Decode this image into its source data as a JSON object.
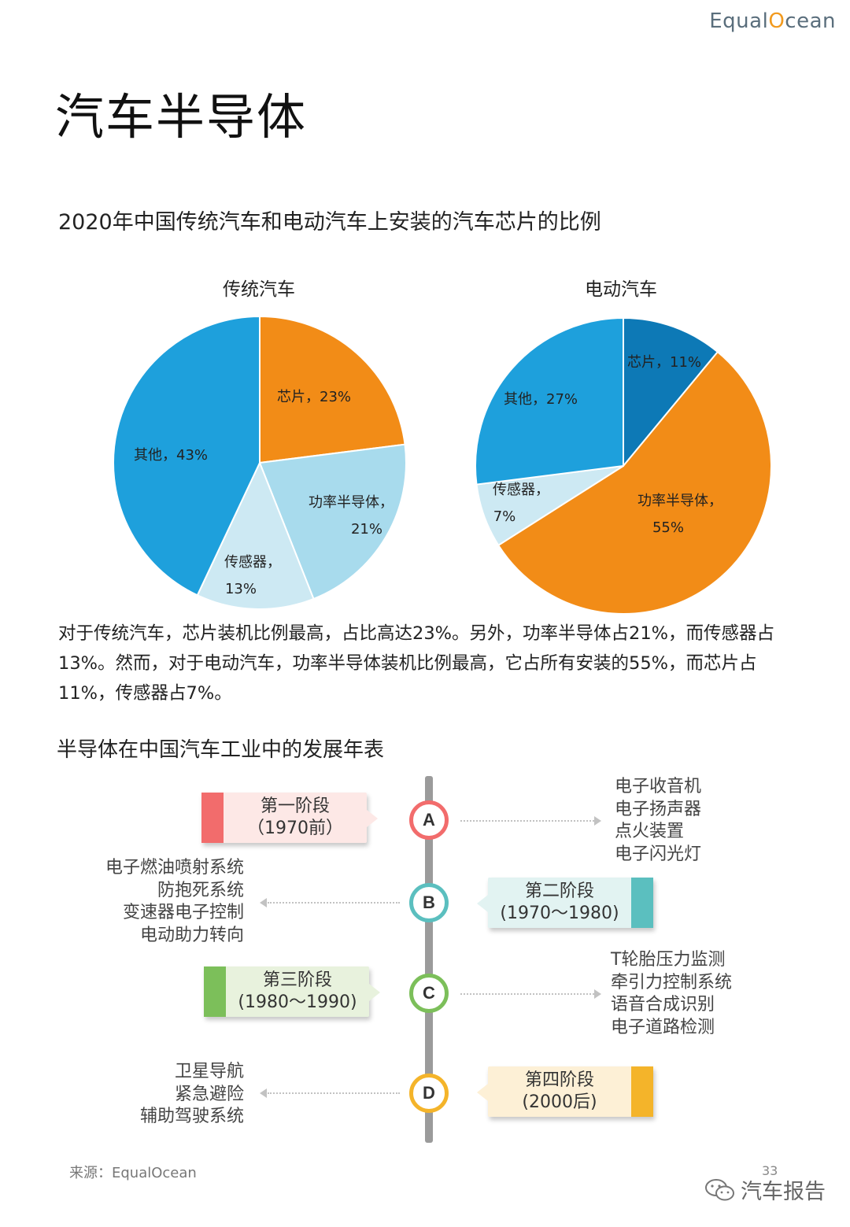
{
  "logo": {
    "prefix": "Equal",
    "o": "O",
    "suffix": "cean"
  },
  "page_title": "汽车半导体",
  "section1_title": "2020年中国传统汽车和电动汽车上安装的汽车芯片的比例",
  "chart_data": [
    {
      "type": "pie",
      "title": "传统汽车",
      "slices": [
        {
          "name": "芯片",
          "value": 23,
          "label": "芯片，23%",
          "color": "#f28c17"
        },
        {
          "name": "功率半导体",
          "value": 21,
          "label_lines": [
            "功率半导体，",
            "21%"
          ],
          "color": "#a8dbed"
        },
        {
          "name": "传感器",
          "value": 13,
          "label_lines": [
            "传感器，",
            "13%"
          ],
          "color": "#cde9f3"
        },
        {
          "name": "其他",
          "value": 43,
          "label": "其他，43%",
          "color": "#1ea0dc"
        }
      ]
    },
    {
      "type": "pie",
      "title": "电动汽车",
      "slices": [
        {
          "name": "芯片",
          "value": 11,
          "label": "芯片，11%",
          "color": "#0d79b6"
        },
        {
          "name": "功率半导体",
          "value": 55,
          "label_lines": [
            "功率半导体，",
            "55%"
          ],
          "color": "#f28c17"
        },
        {
          "name": "传感器",
          "value": 7,
          "label_lines": [
            "传感器，",
            "7%"
          ],
          "color": "#cde9f3"
        },
        {
          "name": "其他",
          "value": 27,
          "label": "其他，27%",
          "color": "#1ea0dc"
        }
      ]
    }
  ],
  "paragraph": "对于传统汽车，芯片装机比例最高，占比高达23%。另外，功率半导体占21%，而传感器占13%。然而，对于电动汽车，功率半导体装机比例最高，它占所有安装的55%，而芯片占11%，传感器占7%。",
  "section2_title": "半导体在中国汽车工业中的发展年表",
  "timeline": [
    {
      "letter": "A",
      "stage": "第一阶段",
      "period": "（1970前）",
      "color": "#f26c6c",
      "bg": "#fde8e6",
      "items": [
        "电子收音机",
        "电子扬声器",
        "点火装置",
        "电子闪光灯"
      ]
    },
    {
      "letter": "B",
      "stage": "第二阶段",
      "period": "(1970～1980)",
      "color": "#5bbfbf",
      "bg": "#e2f3f2",
      "items": [
        "电子燃油喷射系统",
        "防抱死系统",
        "变速器电子控制",
        "电动助力转向"
      ]
    },
    {
      "letter": "C",
      "stage": "第三阶段",
      "period": "(1980～1990)",
      "color": "#7cbf5a",
      "bg": "#e8f2dd",
      "items": [
        "T轮胎压力监测",
        "牵引力控制系统",
        "语音合成识别",
        "电子道路检测"
      ]
    },
    {
      "letter": "D",
      "stage": "第四阶段",
      "period": "(2000后)",
      "color": "#f4b42a",
      "bg": "#fdf0d6",
      "items": [
        "卫星导航",
        "紧急避险",
        "辅助驾驶系统"
      ]
    }
  ],
  "source": "来源：EqualOcean",
  "page_number": "33",
  "watermark": "汽车报告"
}
